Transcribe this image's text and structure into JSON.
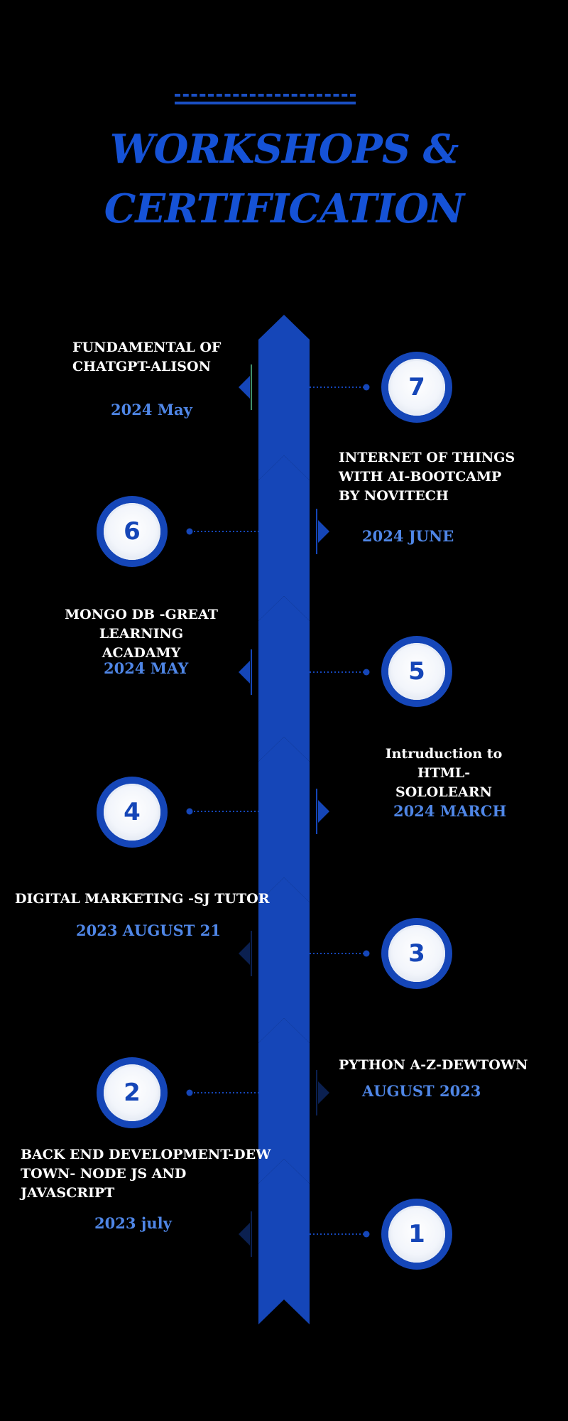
{
  "heading": {
    "line1": "WORKSHOPS &",
    "line2": "CERTIFICATION"
  },
  "colors": {
    "background": "#000000",
    "accent": "#1546b8",
    "title": "#1552d6",
    "date": "#4f86e6",
    "text": "#ffffff"
  },
  "entries": [
    {
      "number": "7",
      "title": "FUNDAMENTAL OF\nCHATGPT-ALISON",
      "date": "2024 May"
    },
    {
      "number": "6",
      "title": "INTERNET OF THINGS\nWITH AI-BOOTCAMP\nBY NOVITECH",
      "date": "2024 JUNE"
    },
    {
      "number": "5",
      "title": "MONGO DB -GREAT\nLEARNING  ACADAMY",
      "date": "2024 MAY"
    },
    {
      "number": "4",
      "title": "Intruduction to HTML-\nSOLOLEARN",
      "date": "2024 MARCH"
    },
    {
      "number": "3",
      "title": "DIGITAL MARKETING -SJ TUTOR",
      "date": "2023 AUGUST 21"
    },
    {
      "number": "2",
      "title": "PYTHON A-Z-DEWTOWN",
      "date": "AUGUST 2023"
    },
    {
      "number": "1",
      "title": "BACK END DEVELOPMENT-DEW\nTOWN- NODE JS AND\nJAVASCRIPT",
      "date": "2023 july"
    }
  ]
}
